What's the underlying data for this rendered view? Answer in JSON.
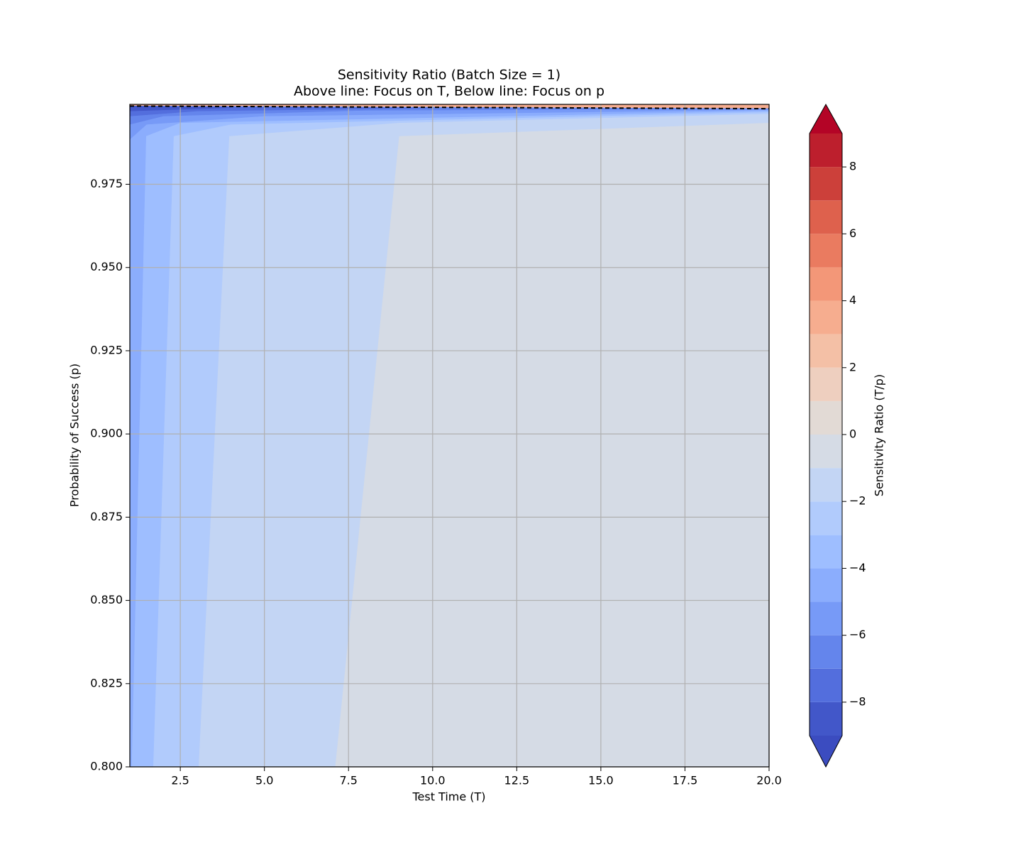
{
  "chart_data": {
    "type": "contour",
    "title": "Sensitivity Ratio (Batch Size = 1)",
    "subtitle": "Above line: Focus on T, Below line: Focus on p",
    "x_label": "Test Time (T)",
    "y_label": "Probability of Success (p)",
    "xlim": [
      1,
      20
    ],
    "ylim": [
      0.8,
      0.999
    ],
    "xticks": [
      2.5,
      {
        "value": 5,
        "label": "5.0"
      },
      7.5,
      {
        "value": 10,
        "label": "10.0"
      },
      12.5,
      {
        "value": 15,
        "label": "15.0"
      },
      17.5,
      {
        "value": 20,
        "label": "20.0"
      }
    ],
    "yticks": [
      {
        "value": 0.8,
        "label": "0.800"
      },
      {
        "value": 0.825,
        "label": "0.825"
      },
      {
        "value": 0.85,
        "label": "0.850"
      },
      {
        "value": 0.875,
        "label": "0.875"
      },
      {
        "value": 0.9,
        "label": "0.900"
      },
      {
        "value": 0.925,
        "label": "0.925"
      },
      {
        "value": 0.95,
        "label": "0.950"
      },
      {
        "value": 0.975,
        "label": "0.975"
      }
    ],
    "grid": true,
    "regions": [
      {
        "band": 13,
        "x": [
          1,
          20,
          20,
          1
        ],
        "y": [
          0.9985,
          0.9977,
          0.999,
          0.999
        ]
      },
      {
        "band": 9,
        "x": [
          1,
          20,
          20,
          1
        ],
        "y": [
          0.8,
          0.8,
          0.9977,
          0.9985
        ]
      },
      {
        "band": 8,
        "x": [
          7.1,
          9.0,
          20,
          20,
          1,
          1
        ],
        "y": [
          0.8,
          0.9895,
          0.9935,
          0.9977,
          0.9985,
          0.8
        ]
      },
      {
        "band": 7,
        "x": [
          3.04,
          3.95,
          9,
          20,
          20,
          1,
          1
        ],
        "y": [
          0.8,
          0.9895,
          0.9935,
          0.9962,
          0.9977,
          0.9985,
          0.8
        ]
      },
      {
        "band": 6,
        "x": [
          1.69,
          2.3,
          4,
          20,
          20,
          1,
          1
        ],
        "y": [
          0.8,
          0.9895,
          0.993,
          0.9967,
          0.9977,
          0.9985,
          0.8
        ]
      },
      {
        "band": 5,
        "x": [
          1.05,
          1.48,
          2.5,
          20,
          20,
          1,
          1
        ],
        "y": [
          0.8,
          0.9895,
          0.9935,
          0.9971,
          0.9977,
          0.9985,
          0.8
        ]
      },
      {
        "band": 4,
        "x": [
          1,
          1.5,
          5,
          20,
          20,
          1
        ],
        "y": [
          0.9885,
          0.993,
          0.9955,
          0.9974,
          0.9977,
          0.9985
        ]
      },
      {
        "band": 3,
        "x": [
          1,
          2,
          8,
          20,
          1
        ],
        "y": [
          0.993,
          0.9955,
          0.9972,
          0.9977,
          0.9985
        ]
      },
      {
        "band": 2,
        "x": [
          1,
          3,
          10,
          1
        ],
        "y": [
          0.9955,
          0.997,
          0.9979,
          0.9985
        ]
      },
      {
        "band": 1,
        "x": [
          1,
          4,
          1
        ],
        "y": [
          0.997,
          0.998,
          0.9985
        ]
      }
    ],
    "contour_line": {
      "level": 0,
      "x": [
        1,
        20
      ],
      "y": [
        0.9985,
        0.9977
      ],
      "color": "#000000",
      "dashed": true
    },
    "colorbar": {
      "label": "Sensitivity Ratio (T/p)",
      "extend": "both",
      "levels": [
        -9,
        -8,
        -7,
        -6,
        -5,
        -4,
        -3,
        -2,
        -1,
        0,
        1,
        2,
        3,
        4,
        5,
        6,
        7,
        8,
        9
      ],
      "colors": [
        "#3b4cc0",
        "#4257c9",
        "#536edd",
        "#6485ec",
        "#779af7",
        "#8badfd",
        "#9ebeff",
        "#b1cbfc",
        "#c3d5f4",
        "#d5dbe5",
        "#e2dad5",
        "#eecfbf",
        "#f4c0a6",
        "#f6ad8f",
        "#f39778",
        "#ea7b60",
        "#de614d",
        "#cc403a",
        "#bd1f2d",
        "#b40426"
      ],
      "ticks": [
        {
          "value": -8,
          "label": "−8"
        },
        {
          "value": -6,
          "label": "−6"
        },
        {
          "value": -4,
          "label": "−4"
        },
        {
          "value": -2,
          "label": "−2"
        },
        0,
        2,
        4,
        6,
        8
      ]
    }
  }
}
